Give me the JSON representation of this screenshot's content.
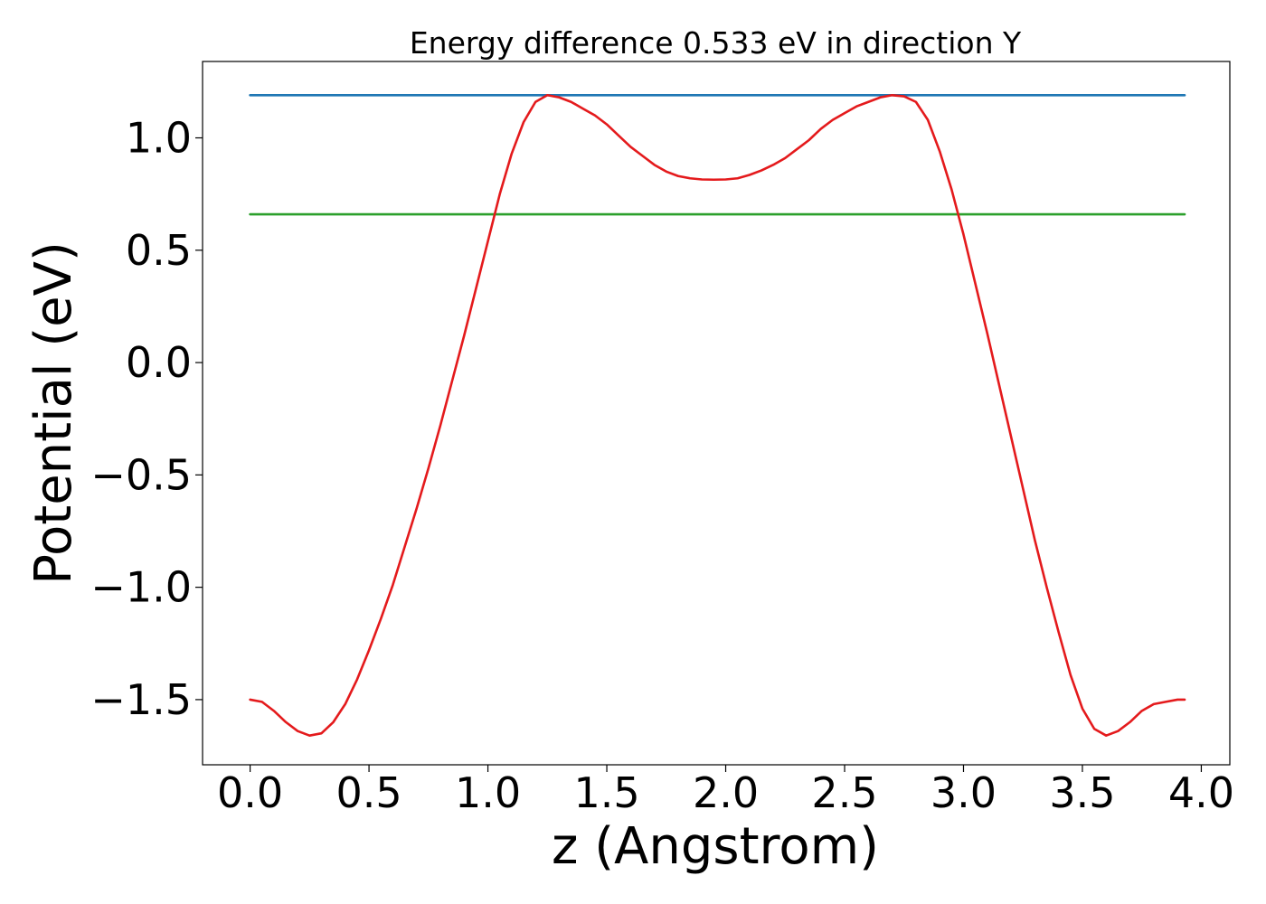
{
  "chart_data": {
    "type": "line",
    "title": "Energy difference 0.533 eV in direction Y",
    "xlabel": "z (Angstrom)",
    "ylabel": "Potential (eV)",
    "xlim": [
      -0.2,
      4.12
    ],
    "ylim": [
      -1.79,
      1.34
    ],
    "xticks": [
      0.0,
      0.5,
      1.0,
      1.5,
      2.0,
      2.5,
      3.0,
      3.5,
      4.0
    ],
    "xtick_labels": [
      "0.0",
      "0.5",
      "1.0",
      "1.5",
      "2.0",
      "2.5",
      "3.0",
      "3.5",
      "4.0"
    ],
    "yticks": [
      -1.5,
      -1.0,
      -0.5,
      0.0,
      0.5,
      1.0
    ],
    "ytick_labels": [
      "−1.5",
      "−1.0",
      "−0.5",
      "0.0",
      "0.5",
      "1.0"
    ],
    "grid": false,
    "series": [
      {
        "color": "#1f77b4",
        "style": "hline",
        "x": [
          0.0,
          3.93
        ],
        "y": [
          1.19,
          1.19
        ]
      },
      {
        "color": "#2ca02c",
        "style": "hline",
        "x": [
          0.0,
          3.93
        ],
        "y": [
          0.66,
          0.66
        ]
      },
      {
        "color": "#e41a1c",
        "style": "curve",
        "x": [
          0.0,
          0.05,
          0.1,
          0.15,
          0.2,
          0.25,
          0.3,
          0.35,
          0.4,
          0.45,
          0.5,
          0.55,
          0.6,
          0.65,
          0.7,
          0.75,
          0.8,
          0.85,
          0.9,
          0.95,
          1.0,
          1.05,
          1.1,
          1.15,
          1.2,
          1.25,
          1.3,
          1.35,
          1.4,
          1.45,
          1.5,
          1.55,
          1.6,
          1.65,
          1.7,
          1.75,
          1.8,
          1.85,
          1.9,
          1.95,
          2.0,
          2.05,
          2.1,
          2.15,
          2.2,
          2.25,
          2.3,
          2.35,
          2.4,
          2.45,
          2.5,
          2.55,
          2.6,
          2.65,
          2.7,
          2.75,
          2.8,
          2.85,
          2.9,
          2.95,
          3.0,
          3.05,
          3.1,
          3.15,
          3.2,
          3.25,
          3.3,
          3.35,
          3.4,
          3.45,
          3.5,
          3.55,
          3.6,
          3.65,
          3.7,
          3.75,
          3.8,
          3.85,
          3.9,
          3.93
        ],
        "y": [
          -1.5,
          -1.51,
          -1.55,
          -1.6,
          -1.64,
          -1.66,
          -1.65,
          -1.6,
          -1.52,
          -1.41,
          -1.28,
          -1.14,
          -0.99,
          -0.82,
          -0.65,
          -0.47,
          -0.28,
          -0.08,
          0.12,
          0.33,
          0.54,
          0.75,
          0.93,
          1.07,
          1.16,
          1.19,
          1.18,
          1.16,
          1.13,
          1.1,
          1.06,
          1.01,
          0.96,
          0.92,
          0.88,
          0.85,
          0.83,
          0.82,
          0.815,
          0.814,
          0.815,
          0.82,
          0.835,
          0.855,
          0.88,
          0.91,
          0.95,
          0.99,
          1.04,
          1.08,
          1.11,
          1.14,
          1.16,
          1.18,
          1.19,
          1.185,
          1.16,
          1.08,
          0.94,
          0.77,
          0.57,
          0.35,
          0.13,
          -0.1,
          -0.33,
          -0.56,
          -0.79,
          -1.0,
          -1.2,
          -1.39,
          -1.54,
          -1.63,
          -1.66,
          -1.64,
          -1.6,
          -1.55,
          -1.52,
          -1.51,
          -1.5,
          -1.5
        ]
      }
    ]
  }
}
